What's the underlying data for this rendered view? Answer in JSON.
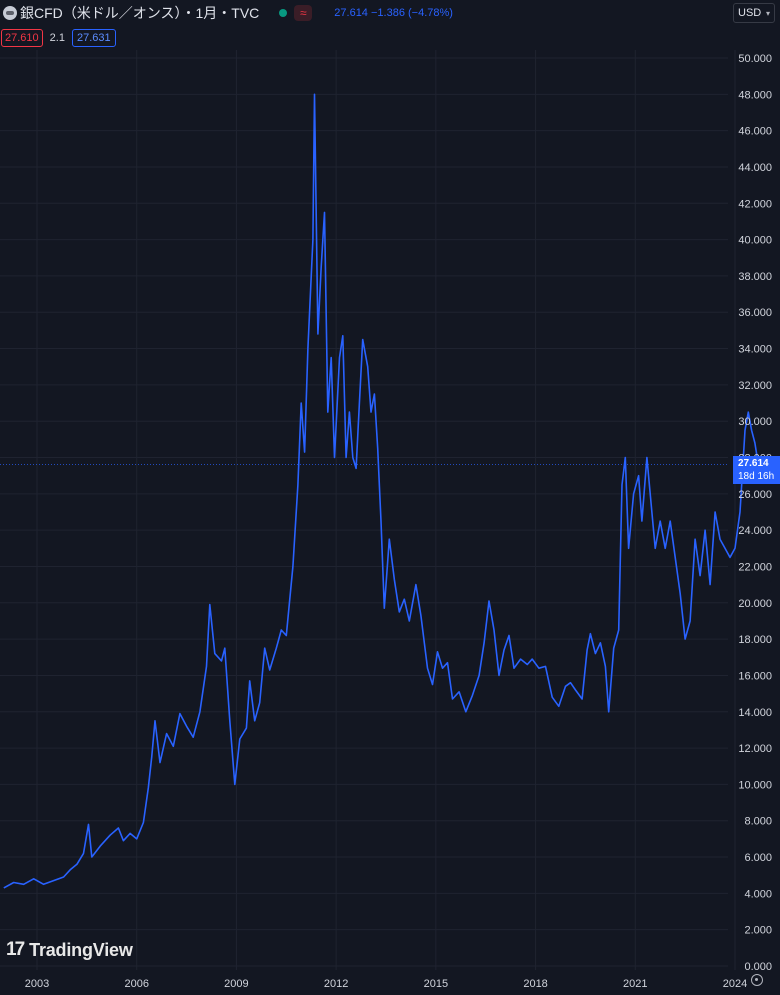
{
  "header": {
    "symbol_title": "銀CFD（米ドル／オンス）・1月・TVC",
    "approx_icon": "≈",
    "last": "27.614",
    "change": "−1.386",
    "change_pct": "(−4.78%)",
    "currency": "USD"
  },
  "indicators": {
    "value1": "27.610",
    "value2": "2.1",
    "value3": "27.631"
  },
  "price_tag": {
    "price": "27.614",
    "countdown": "18d 16h"
  },
  "logo": {
    "text": "TradingView"
  },
  "colors": {
    "background": "#131722",
    "line": "#2962ff",
    "grid": "#1f2330",
    "axis_text": "#d1d4dc"
  },
  "chart_data": {
    "type": "line",
    "title": "銀CFD（米ドル／オンス）",
    "xlabel": "",
    "ylabel": "",
    "ylim": [
      0,
      50
    ],
    "xlim": [
      2002.0,
      2025.0
    ],
    "yticks": [
      0,
      2,
      4,
      6,
      8,
      10,
      12,
      14,
      16,
      18,
      20,
      22,
      24,
      26,
      28,
      30,
      32,
      34,
      36,
      38,
      40,
      42,
      44,
      46,
      48,
      50
    ],
    "yticklabels": [
      "0.000",
      "2.000",
      "4.000",
      "6.000",
      "8.000",
      "10.000",
      "12.000",
      "14.000",
      "16.000",
      "18.000",
      "20.000",
      "22.000",
      "24.000",
      "26.000",
      "28.000",
      "30.000",
      "32.000",
      "34.000",
      "36.000",
      "38.000",
      "40.000",
      "42.000",
      "44.000",
      "46.000",
      "48.000",
      "50.000"
    ],
    "xticks": [
      2003,
      2006,
      2009,
      2012,
      2015,
      2018,
      2021,
      2024
    ],
    "xticklabels": [
      "2003",
      "2006",
      "2009",
      "2012",
      "2015",
      "2018",
      "2021",
      "2024"
    ],
    "last_price": 27.614,
    "series": [
      {
        "points": [
          [
            2002.0,
            4.3
          ],
          [
            2002.3,
            4.6
          ],
          [
            2002.6,
            4.5
          ],
          [
            2002.9,
            4.8
          ],
          [
            2003.2,
            4.5
          ],
          [
            2003.5,
            4.7
          ],
          [
            2003.8,
            4.9
          ],
          [
            2004.0,
            5.3
          ],
          [
            2004.2,
            5.6
          ],
          [
            2004.4,
            6.2
          ],
          [
            2004.55,
            7.8
          ],
          [
            2004.65,
            6.0
          ],
          [
            2004.9,
            6.6
          ],
          [
            2005.2,
            7.2
          ],
          [
            2005.45,
            7.6
          ],
          [
            2005.6,
            6.9
          ],
          [
            2005.8,
            7.3
          ],
          [
            2006.0,
            7.0
          ],
          [
            2006.2,
            7.9
          ],
          [
            2006.35,
            9.8
          ],
          [
            2006.45,
            11.5
          ],
          [
            2006.55,
            13.5
          ],
          [
            2006.7,
            11.2
          ],
          [
            2006.9,
            12.8
          ],
          [
            2007.1,
            12.1
          ],
          [
            2007.3,
            13.9
          ],
          [
            2007.5,
            13.2
          ],
          [
            2007.7,
            12.6
          ],
          [
            2007.9,
            14.0
          ],
          [
            2008.1,
            16.5
          ],
          [
            2008.2,
            19.9
          ],
          [
            2008.35,
            17.2
          ],
          [
            2008.55,
            16.8
          ],
          [
            2008.65,
            17.5
          ],
          [
            2008.8,
            13.5
          ],
          [
            2008.95,
            10.0
          ],
          [
            2009.1,
            12.5
          ],
          [
            2009.3,
            13.1
          ],
          [
            2009.4,
            15.7
          ],
          [
            2009.55,
            13.5
          ],
          [
            2009.7,
            14.5
          ],
          [
            2009.85,
            17.5
          ],
          [
            2010.0,
            16.3
          ],
          [
            2010.2,
            17.5
          ],
          [
            2010.35,
            18.5
          ],
          [
            2010.5,
            18.2
          ],
          [
            2010.7,
            22.0
          ],
          [
            2010.85,
            26.5
          ],
          [
            2010.95,
            31.0
          ],
          [
            2011.05,
            28.3
          ],
          [
            2011.15,
            34.0
          ],
          [
            2011.3,
            40.0
          ],
          [
            2011.35,
            48.0
          ],
          [
            2011.45,
            34.8
          ],
          [
            2011.55,
            38.5
          ],
          [
            2011.65,
            41.5
          ],
          [
            2011.75,
            30.5
          ],
          [
            2011.85,
            33.5
          ],
          [
            2011.95,
            28.0
          ],
          [
            2012.1,
            33.5
          ],
          [
            2012.2,
            34.7
          ],
          [
            2012.3,
            28.0
          ],
          [
            2012.4,
            30.5
          ],
          [
            2012.5,
            28.0
          ],
          [
            2012.6,
            27.4
          ],
          [
            2012.7,
            31.0
          ],
          [
            2012.8,
            34.5
          ],
          [
            2012.95,
            33.0
          ],
          [
            2013.05,
            30.5
          ],
          [
            2013.15,
            31.5
          ],
          [
            2013.25,
            28.5
          ],
          [
            2013.35,
            24.5
          ],
          [
            2013.45,
            19.7
          ],
          [
            2013.6,
            23.5
          ],
          [
            2013.75,
            21.3
          ],
          [
            2013.9,
            19.5
          ],
          [
            2014.05,
            20.2
          ],
          [
            2014.2,
            19.0
          ],
          [
            2014.4,
            21.0
          ],
          [
            2014.55,
            19.3
          ],
          [
            2014.75,
            16.4
          ],
          [
            2014.9,
            15.5
          ],
          [
            2015.05,
            17.3
          ],
          [
            2015.2,
            16.4
          ],
          [
            2015.35,
            16.7
          ],
          [
            2015.5,
            14.7
          ],
          [
            2015.7,
            15.1
          ],
          [
            2015.9,
            14.0
          ],
          [
            2016.1,
            14.9
          ],
          [
            2016.3,
            16.0
          ],
          [
            2016.45,
            17.8
          ],
          [
            2016.6,
            20.1
          ],
          [
            2016.75,
            18.5
          ],
          [
            2016.9,
            16.0
          ],
          [
            2017.05,
            17.4
          ],
          [
            2017.2,
            18.2
          ],
          [
            2017.35,
            16.4
          ],
          [
            2017.55,
            16.9
          ],
          [
            2017.75,
            16.6
          ],
          [
            2017.9,
            16.9
          ],
          [
            2018.1,
            16.4
          ],
          [
            2018.3,
            16.5
          ],
          [
            2018.5,
            14.8
          ],
          [
            2018.7,
            14.3
          ],
          [
            2018.9,
            15.4
          ],
          [
            2019.05,
            15.6
          ],
          [
            2019.2,
            15.2
          ],
          [
            2019.4,
            14.7
          ],
          [
            2019.55,
            17.4
          ],
          [
            2019.65,
            18.3
          ],
          [
            2019.8,
            17.2
          ],
          [
            2019.95,
            17.8
          ],
          [
            2020.1,
            16.5
          ],
          [
            2020.2,
            14.0
          ],
          [
            2020.35,
            17.5
          ],
          [
            2020.5,
            18.5
          ],
          [
            2020.6,
            26.5
          ],
          [
            2020.7,
            28.0
          ],
          [
            2020.8,
            23.0
          ],
          [
            2020.95,
            26.0
          ],
          [
            2021.1,
            27.0
          ],
          [
            2021.2,
            24.5
          ],
          [
            2021.35,
            28.0
          ],
          [
            2021.45,
            26.0
          ],
          [
            2021.6,
            23.0
          ],
          [
            2021.75,
            24.5
          ],
          [
            2021.9,
            23.0
          ],
          [
            2022.05,
            24.5
          ],
          [
            2022.2,
            22.5
          ],
          [
            2022.35,
            20.5
          ],
          [
            2022.5,
            18.0
          ],
          [
            2022.65,
            19.0
          ],
          [
            2022.8,
            23.5
          ],
          [
            2022.95,
            21.5
          ],
          [
            2023.1,
            24.0
          ],
          [
            2023.25,
            21.0
          ],
          [
            2023.4,
            25.0
          ],
          [
            2023.55,
            23.5
          ],
          [
            2023.7,
            23.0
          ],
          [
            2023.85,
            22.5
          ],
          [
            2024.0,
            23.0
          ],
          [
            2024.15,
            25.0
          ],
          [
            2024.3,
            29.5
          ],
          [
            2024.4,
            30.5
          ],
          [
            2024.5,
            29.5
          ],
          [
            2024.6,
            28.8
          ],
          [
            2024.7,
            27.614
          ]
        ]
      }
    ]
  }
}
